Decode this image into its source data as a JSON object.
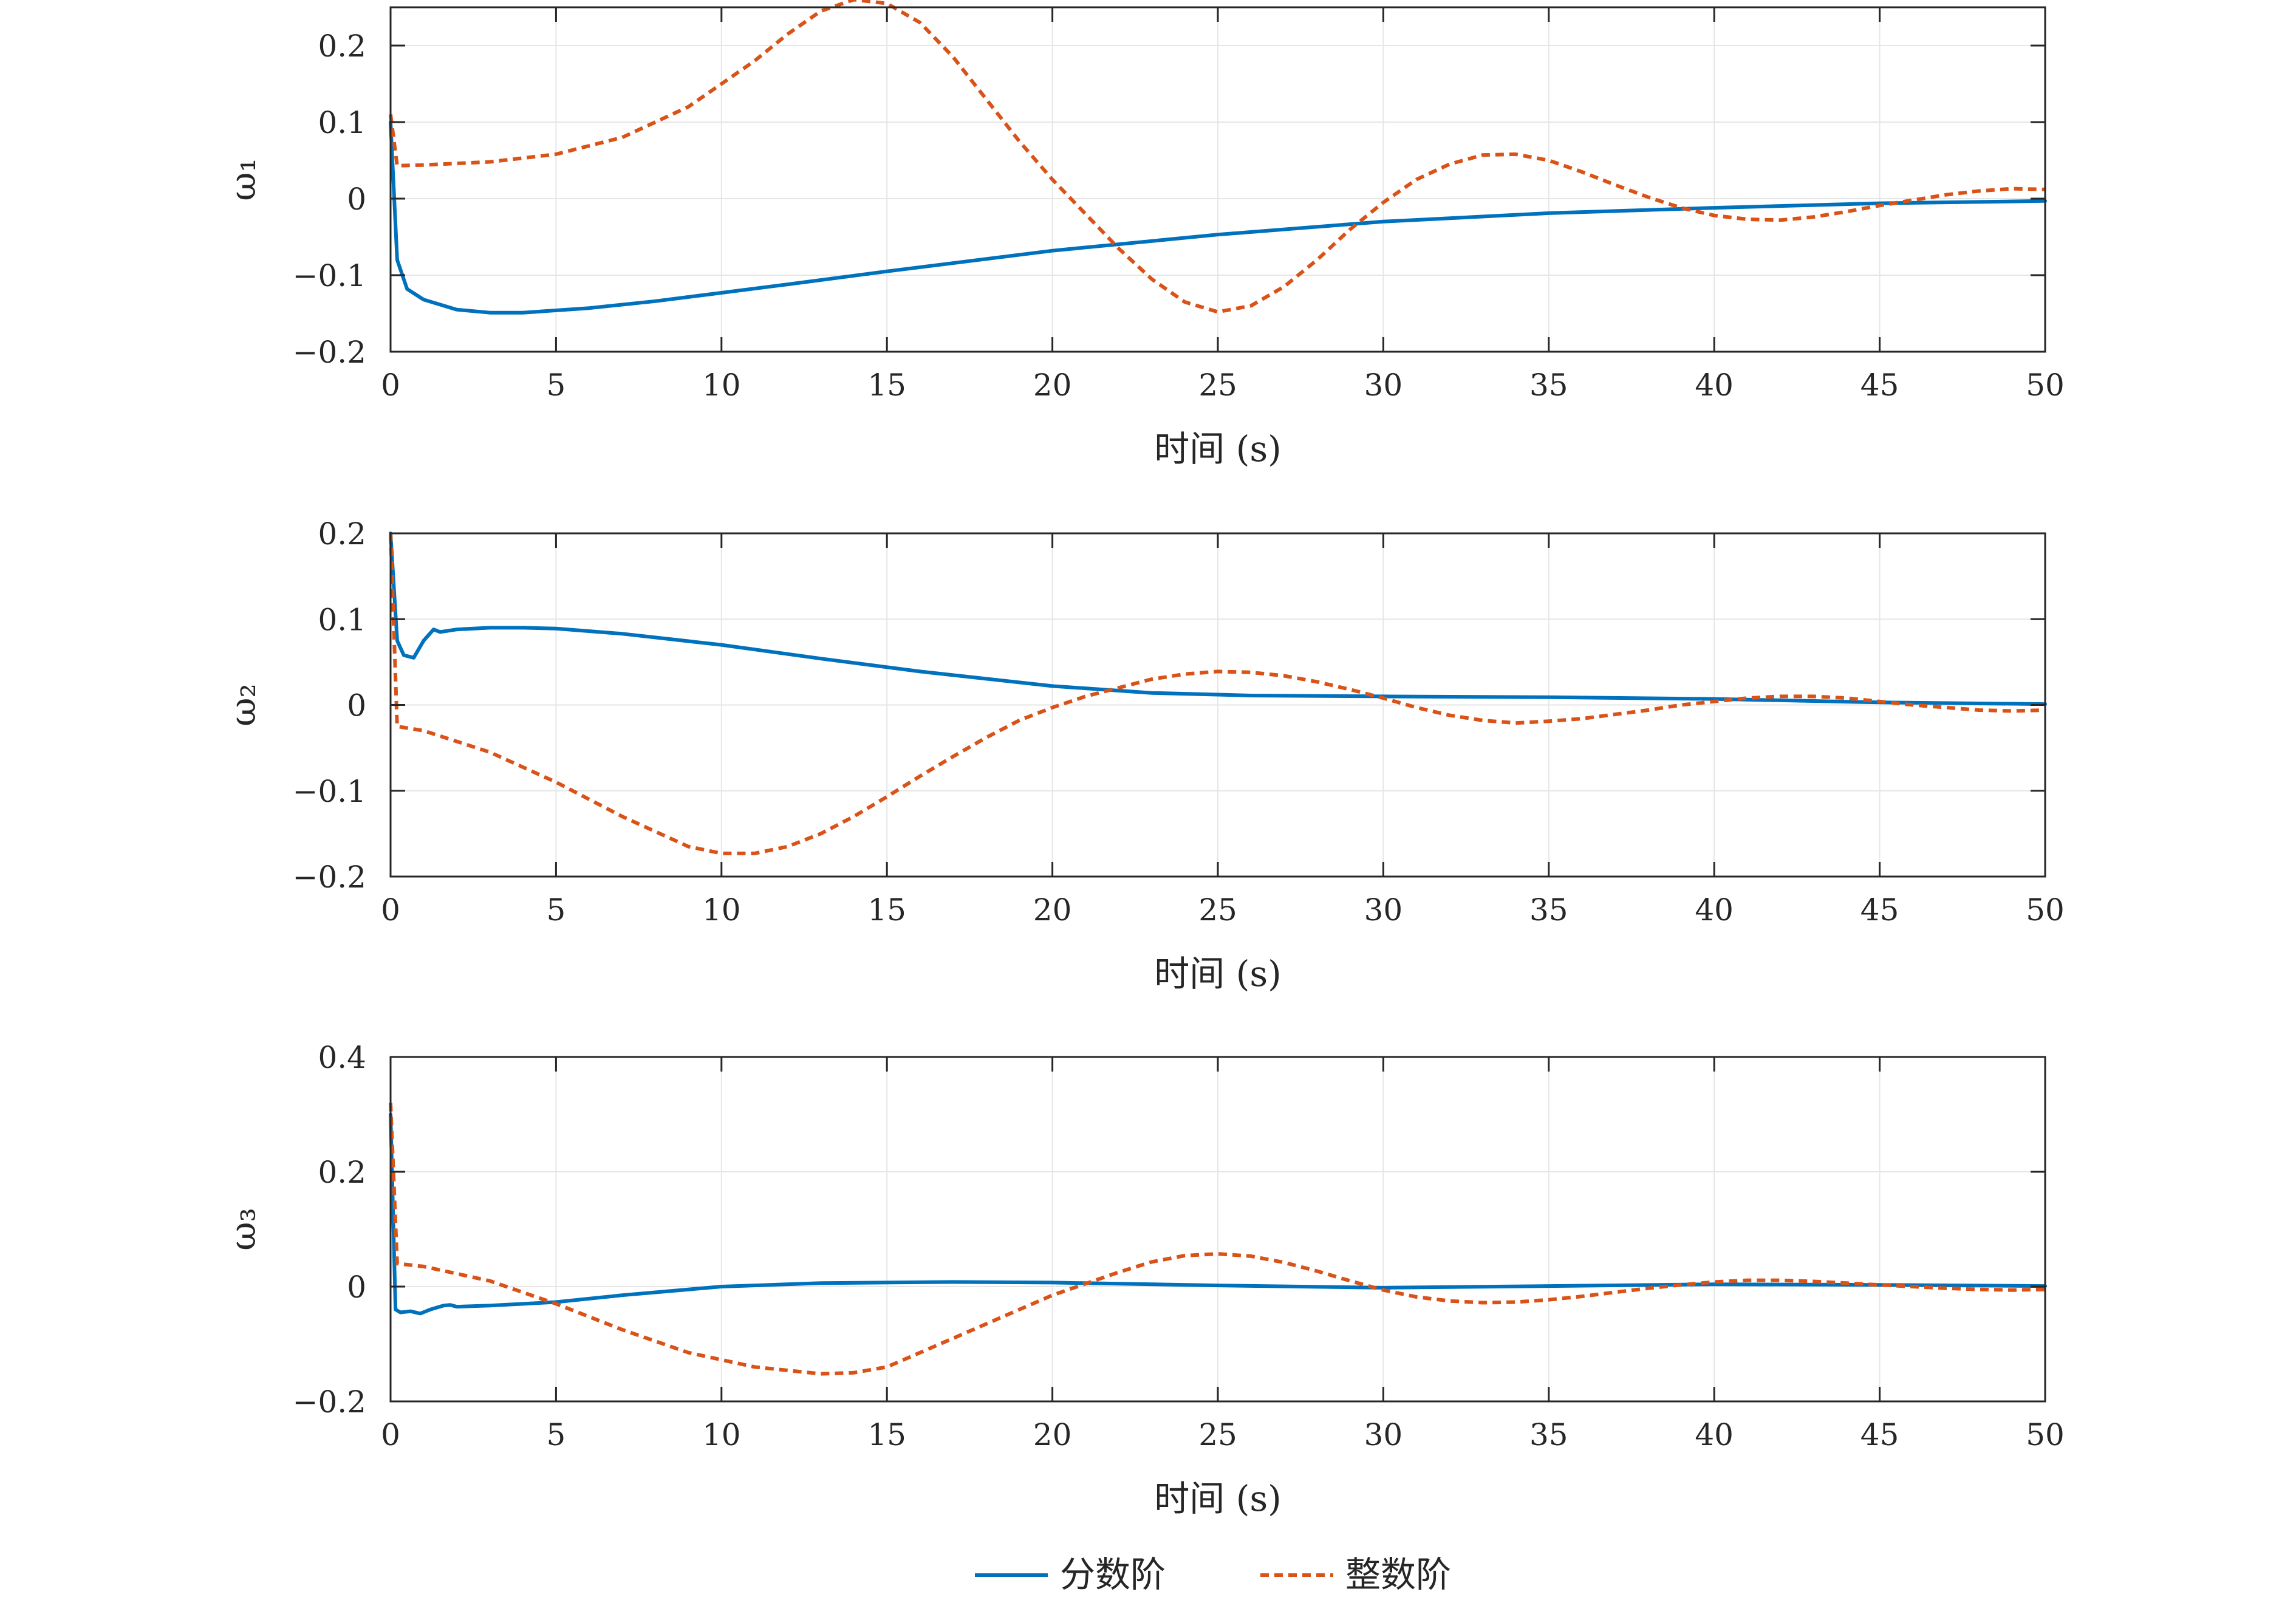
{
  "chart_data": [
    {
      "type": "line",
      "ylabel": "ω₁",
      "xlabel": "时间 (s)",
      "xlim": [
        0,
        50
      ],
      "ylim": [
        -0.2,
        0.25
      ],
      "xticks": [
        0,
        5,
        10,
        15,
        20,
        25,
        30,
        35,
        40,
        45,
        50
      ],
      "yticks": [
        -0.2,
        -0.1,
        0,
        0.1,
        0.2
      ],
      "grid": true,
      "series": [
        {
          "name": "分数阶",
          "x": [
            0,
            0.2,
            0.5,
            1,
            2,
            3,
            4,
            6,
            8,
            10,
            12,
            15,
            20,
            25,
            30,
            35,
            40,
            45,
            50
          ],
          "y": [
            0.1,
            -0.08,
            -0.118,
            -0.132,
            -0.145,
            -0.149,
            -0.149,
            -0.143,
            -0.134,
            -0.123,
            -0.112,
            -0.095,
            -0.068,
            -0.047,
            -0.03,
            -0.019,
            -0.012,
            -0.006,
            -0.003
          ]
        },
        {
          "name": "整数阶",
          "x": [
            0,
            0.2,
            1,
            3,
            5,
            7,
            9,
            11,
            12,
            13,
            14,
            15,
            16,
            17,
            18,
            19,
            20,
            21,
            22,
            23,
            24,
            25,
            26,
            27,
            28,
            29,
            30,
            31,
            32,
            33,
            34,
            35,
            36,
            37,
            38,
            39,
            40,
            41,
            42,
            43,
            44,
            45,
            46,
            47,
            48,
            49,
            50
          ],
          "y": [
            0.11,
            0.043,
            0.044,
            0.048,
            0.058,
            0.08,
            0.12,
            0.18,
            0.215,
            0.245,
            0.26,
            0.255,
            0.23,
            0.185,
            0.13,
            0.075,
            0.025,
            -0.02,
            -0.065,
            -0.105,
            -0.135,
            -0.148,
            -0.14,
            -0.115,
            -0.08,
            -0.04,
            -0.005,
            0.025,
            0.045,
            0.057,
            0.058,
            0.05,
            0.035,
            0.018,
            0.002,
            -0.012,
            -0.022,
            -0.027,
            -0.028,
            -0.024,
            -0.017,
            -0.009,
            -0.002,
            0.005,
            0.01,
            0.013,
            0.012
          ]
        }
      ]
    },
    {
      "type": "line",
      "ylabel": "ω₂",
      "xlabel": "时间 (s)",
      "xlim": [
        0,
        50
      ],
      "ylim": [
        -0.2,
        0.2
      ],
      "xticks": [
        0,
        5,
        10,
        15,
        20,
        25,
        30,
        35,
        40,
        45,
        50
      ],
      "yticks": [
        -0.2,
        -0.1,
        0,
        0.1,
        0.2
      ],
      "grid": true,
      "series": [
        {
          "name": "分数阶",
          "x": [
            0,
            0.2,
            0.4,
            0.7,
            1,
            1.3,
            1.5,
            2,
            3,
            4,
            5,
            7,
            10,
            13,
            16,
            20,
            23,
            26,
            30,
            35,
            40,
            45,
            50
          ],
          "y": [
            0.2,
            0.075,
            0.058,
            0.055,
            0.075,
            0.088,
            0.085,
            0.088,
            0.09,
            0.09,
            0.089,
            0.083,
            0.07,
            0.054,
            0.039,
            0.022,
            0.014,
            0.011,
            0.01,
            0.009,
            0.007,
            0.003,
            0.001
          ]
        },
        {
          "name": "整数阶",
          "x": [
            0,
            0.2,
            1,
            3,
            5,
            7,
            9,
            10,
            11,
            12,
            13,
            14,
            15,
            16,
            17,
            18,
            19,
            20,
            21,
            22,
            23,
            24,
            25,
            26,
            27,
            28,
            29,
            30,
            31,
            32,
            33,
            34,
            35,
            36,
            37,
            38,
            39,
            40,
            41,
            42,
            43,
            44,
            45,
            46,
            47,
            48,
            49,
            50
          ],
          "y": [
            0.2,
            -0.025,
            -0.03,
            -0.055,
            -0.09,
            -0.13,
            -0.165,
            -0.173,
            -0.173,
            -0.165,
            -0.15,
            -0.13,
            -0.107,
            -0.083,
            -0.06,
            -0.038,
            -0.018,
            -0.003,
            0.01,
            0.02,
            0.03,
            0.036,
            0.039,
            0.038,
            0.034,
            0.027,
            0.018,
            0.008,
            -0.003,
            -0.012,
            -0.018,
            -0.021,
            -0.019,
            -0.016,
            -0.011,
            -0.006,
            0,
            0.004,
            0.008,
            0.01,
            0.01,
            0.008,
            0.004,
            0,
            -0.003,
            -0.006,
            -0.007,
            -0.006
          ]
        }
      ]
    },
    {
      "type": "line",
      "ylabel": "ω₃",
      "xlabel": "时间 (s)",
      "xlim": [
        0,
        50
      ],
      "ylim": [
        -0.2,
        0.4
      ],
      "xticks": [
        0,
        5,
        10,
        15,
        20,
        25,
        30,
        35,
        40,
        45,
        50
      ],
      "yticks": [
        -0.2,
        0,
        0.2,
        0.4
      ],
      "grid": true,
      "series": [
        {
          "name": "分数阶",
          "x": [
            0,
            0.15,
            0.3,
            0.6,
            0.9,
            1.2,
            1.6,
            1.8,
            2,
            3,
            5,
            7,
            10,
            13,
            17,
            20,
            25,
            30,
            35,
            40,
            45,
            50
          ],
          "y": [
            0.3,
            -0.04,
            -0.045,
            -0.043,
            -0.047,
            -0.04,
            -0.033,
            -0.032,
            -0.035,
            -0.033,
            -0.027,
            -0.015,
            0,
            0.006,
            0.008,
            0.007,
            0.002,
            -0.002,
            0.001,
            0.004,
            0.003,
            0.001
          ]
        },
        {
          "name": "整数阶",
          "x": [
            0,
            0.2,
            1,
            3,
            5,
            7,
            9,
            11,
            13,
            14,
            15,
            17,
            19,
            20,
            21,
            22,
            23,
            24,
            25,
            26,
            27,
            28,
            29,
            30,
            31,
            32,
            33,
            34,
            35,
            36,
            37,
            38,
            39,
            40,
            41,
            42,
            43,
            44,
            45,
            46,
            47,
            48,
            49,
            50
          ],
          "y": [
            0.32,
            0.04,
            0.035,
            0.01,
            -0.03,
            -0.075,
            -0.115,
            -0.14,
            -0.152,
            -0.15,
            -0.14,
            -0.09,
            -0.04,
            -0.015,
            0.005,
            0.025,
            0.043,
            0.054,
            0.057,
            0.053,
            0.042,
            0.027,
            0.01,
            -0.006,
            -0.018,
            -0.025,
            -0.028,
            -0.027,
            -0.023,
            -0.017,
            -0.01,
            -0.003,
            0.003,
            0.008,
            0.011,
            0.011,
            0.009,
            0.006,
            0.003,
            0,
            -0.003,
            -0.005,
            -0.006,
            -0.005
          ]
        }
      ]
    }
  ],
  "legend": {
    "placement": "bottom-center",
    "items": [
      {
        "label": "分数阶",
        "color": "#0072BD",
        "style": "solid"
      },
      {
        "label": "整数阶",
        "color": "#D95319",
        "style": "dashed"
      }
    ]
  },
  "colors": {
    "series1": "#0072BD",
    "series2": "#D95319",
    "axis": "#262626",
    "grid": "#e6e6e6"
  }
}
